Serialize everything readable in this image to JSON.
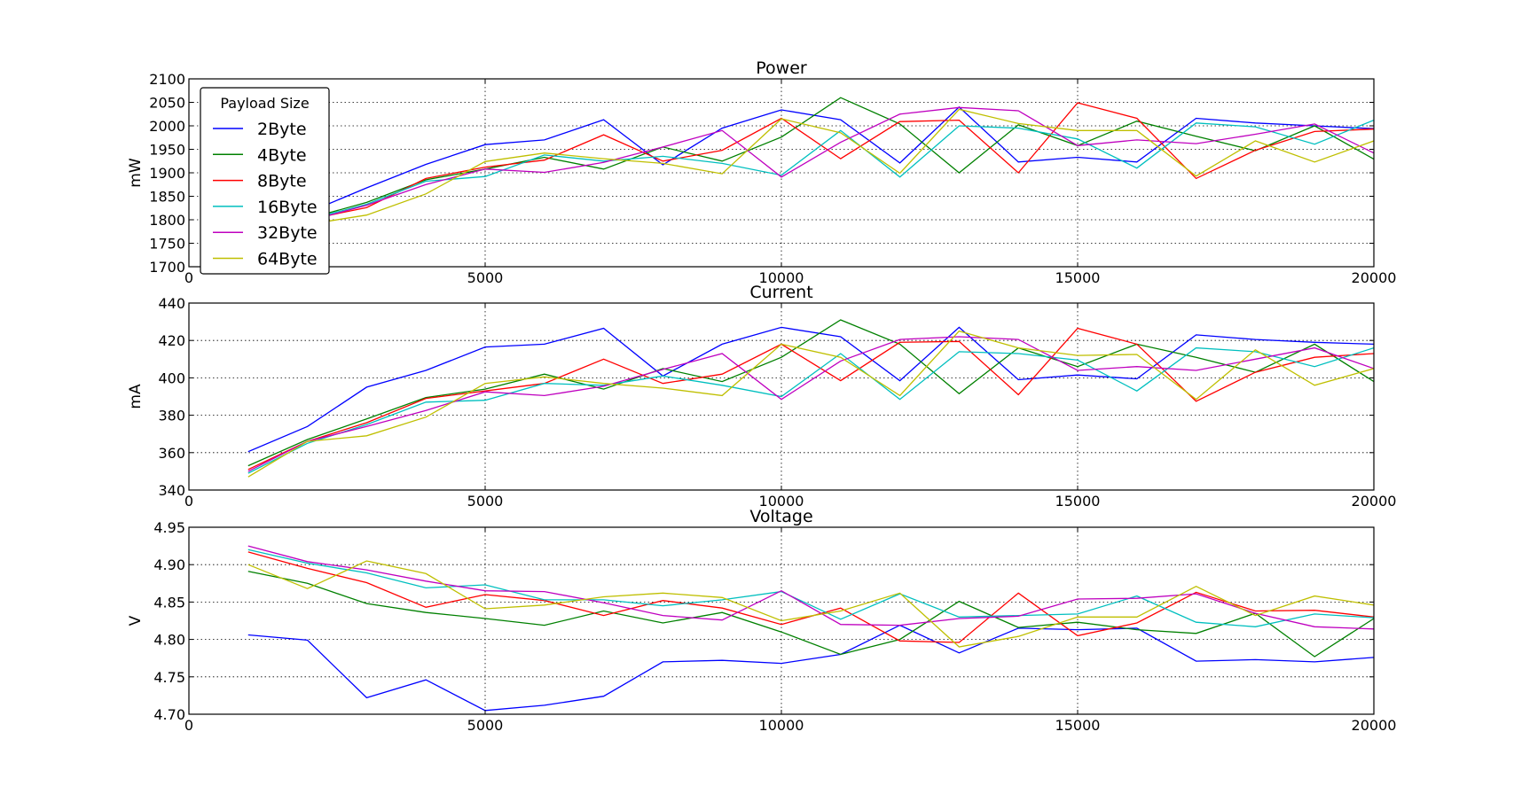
{
  "legend": {
    "title": "Payload Size",
    "entries": [
      "2Byte",
      "4Byte",
      "8Byte",
      "16Byte",
      "32Byte",
      "64Byte"
    ],
    "placement": "top-left of first panel"
  },
  "colors": {
    "2Byte": "#0000ff",
    "4Byte": "#008000",
    "8Byte": "#ff0000",
    "16Byte": "#00bfbf",
    "32Byte": "#bf00bf",
    "64Byte": "#bfbf00"
  },
  "chart_data": [
    {
      "type": "line",
      "title": "Power",
      "xlabel": "",
      "ylabel": "mW",
      "xlim": [
        0,
        20000
      ],
      "ylim": [
        1700,
        2100
      ],
      "grid": true,
      "xticks": [
        "0",
        "5000",
        "10000",
        "15000",
        "20000"
      ],
      "yticks": [
        "1700",
        "1750",
        "1800",
        "1850",
        "1900",
        "1950",
        "2000",
        "2050",
        "2100"
      ],
      "x": [
        1000,
        2000,
        3000,
        4000,
        5000,
        6000,
        7000,
        8000,
        9000,
        10000,
        11000,
        12000,
        13000,
        14000,
        15000,
        16000,
        17000,
        18000,
        19000,
        20000
      ],
      "series": [
        {
          "name": "2Byte",
          "values": [
            1740,
            1815,
            1868,
            1918,
            1960,
            1970,
            2013,
            1917,
            1995,
            2034,
            2013,
            1921,
            2040,
            1923,
            1933,
            1923,
            2016,
            2006,
            2000,
            1994
          ]
        },
        {
          "name": "4Byte",
          "values": [
            1738,
            1802,
            1837,
            1885,
            1908,
            1933,
            1908,
            1955,
            1925,
            1976,
            2060,
            2004,
            1900,
            2002,
            1958,
            2010,
            1978,
            1947,
            2000,
            1929
          ]
        },
        {
          "name": "8Byte",
          "values": [
            1735,
            1800,
            1826,
            1888,
            1912,
            1927,
            1981,
            1925,
            1948,
            2016,
            1930,
            2009,
            2012,
            1900,
            2049,
            2016,
            1888,
            1948,
            1988,
            1993
          ]
        },
        {
          "name": "16Byte",
          "values": [
            1730,
            1800,
            1833,
            1882,
            1892,
            1938,
            1925,
            1935,
            1920,
            1895,
            1990,
            1891,
            2000,
            1995,
            1972,
            1910,
            2006,
            1998,
            1961,
            2012
          ]
        },
        {
          "name": "32Byte",
          "values": [
            1725,
            1797,
            1831,
            1875,
            1908,
            1901,
            1922,
            1955,
            1990,
            1891,
            1965,
            2025,
            2039,
            2032,
            1958,
            1970,
            1962,
            1982,
            2004,
            1942
          ]
        },
        {
          "name": "64Byte",
          "values": [
            1720,
            1790,
            1810,
            1855,
            1924,
            1942,
            1930,
            1920,
            1898,
            2015,
            1985,
            1899,
            2035,
            2005,
            1990,
            1990,
            1893,
            1968,
            1923,
            1968
          ]
        }
      ]
    },
    {
      "type": "line",
      "title": "Current",
      "xlabel": "",
      "ylabel": "mA",
      "xlim": [
        0,
        20000
      ],
      "ylim": [
        340,
        440
      ],
      "grid": true,
      "xticks": [
        "0",
        "5000",
        "10000",
        "15000",
        "20000"
      ],
      "yticks": [
        "340",
        "360",
        "380",
        "400",
        "420",
        "440"
      ],
      "x": [
        1000,
        2000,
        3000,
        4000,
        5000,
        6000,
        7000,
        8000,
        9000,
        10000,
        11000,
        12000,
        13000,
        14000,
        15000,
        16000,
        17000,
        18000,
        19000,
        20000
      ],
      "series": [
        {
          "name": "2Byte",
          "values": [
            360.5,
            374,
            395,
            404,
            416.5,
            418,
            426.5,
            401,
            418,
            427,
            422,
            398.5,
            427,
            399,
            401.5,
            399.5,
            423,
            420.5,
            419,
            418
          ]
        },
        {
          "name": "4Byte",
          "values": [
            353,
            367,
            378,
            389.5,
            394,
            402,
            394,
            405,
            398,
            411,
            431,
            418,
            391.5,
            416,
            406,
            418,
            411,
            403,
            418,
            398
          ]
        },
        {
          "name": "8Byte",
          "values": [
            351,
            366,
            376,
            389,
            393,
            397,
            410,
            397,
            402,
            418,
            398.5,
            419,
            419.5,
            391,
            426.5,
            418,
            387.5,
            403,
            411,
            413
          ]
        },
        {
          "name": "16Byte",
          "values": [
            349,
            365,
            375,
            387,
            388,
            397,
            396,
            401,
            396,
            390,
            413,
            388.5,
            414,
            413,
            409.5,
            393,
            416,
            414,
            406,
            416
          ]
        },
        {
          "name": "32Byte",
          "values": [
            350,
            366,
            374,
            382.5,
            392.5,
            390.5,
            395.5,
            404.5,
            413,
            388.5,
            409,
            420.5,
            422,
            420.5,
            404,
            406,
            404,
            410,
            416,
            405
          ]
        },
        {
          "name": "64Byte",
          "values": [
            347,
            366,
            369,
            379,
            397,
            400.5,
            397,
            394.5,
            390.5,
            418,
            411,
            390.5,
            425,
            416,
            412,
            412.5,
            388.5,
            415,
            396,
            405
          ]
        }
      ]
    },
    {
      "type": "line",
      "title": "Voltage",
      "xlabel": "",
      "ylabel": "V",
      "xlim": [
        0,
        20000
      ],
      "ylim": [
        4.7,
        4.95
      ],
      "grid": true,
      "xticks": [
        "0",
        "5000",
        "10000",
        "15000",
        "20000"
      ],
      "yticks": [
        "4.70",
        "4.75",
        "4.80",
        "4.85",
        "4.90",
        "4.95"
      ],
      "x": [
        1000,
        2000,
        3000,
        4000,
        5000,
        6000,
        7000,
        8000,
        9000,
        10000,
        11000,
        12000,
        13000,
        14000,
        15000,
        16000,
        17000,
        18000,
        19000,
        20000
      ],
      "series": [
        {
          "name": "2Byte",
          "values": [
            4.806,
            4.799,
            4.722,
            4.746,
            4.705,
            4.712,
            4.724,
            4.77,
            4.772,
            4.768,
            4.78,
            4.819,
            4.782,
            4.815,
            4.813,
            4.815,
            4.771,
            4.773,
            4.77,
            4.776
          ]
        },
        {
          "name": "4Byte",
          "values": [
            4.891,
            4.875,
            4.848,
            4.836,
            4.828,
            4.819,
            4.838,
            4.822,
            4.836,
            4.81,
            4.78,
            4.8,
            4.851,
            4.816,
            4.823,
            4.813,
            4.808,
            4.835,
            4.777,
            4.828
          ]
        },
        {
          "name": "8Byte",
          "values": [
            4.917,
            4.895,
            4.876,
            4.843,
            4.86,
            4.852,
            4.832,
            4.852,
            4.842,
            4.82,
            4.842,
            4.798,
            4.796,
            4.862,
            4.805,
            4.822,
            4.863,
            4.838,
            4.839,
            4.83
          ]
        },
        {
          "name": "16Byte",
          "values": [
            4.92,
            4.902,
            4.889,
            4.869,
            4.873,
            4.853,
            4.853,
            4.845,
            4.853,
            4.864,
            4.827,
            4.861,
            4.83,
            4.832,
            4.834,
            4.858,
            4.823,
            4.817,
            4.834,
            4.829
          ]
        },
        {
          "name": "32Byte",
          "values": [
            4.925,
            4.904,
            4.893,
            4.878,
            4.865,
            4.864,
            4.849,
            4.832,
            4.826,
            4.865,
            4.82,
            4.819,
            4.828,
            4.831,
            4.854,
            4.855,
            4.861,
            4.835,
            4.817,
            4.814
          ]
        },
        {
          "name": "64Byte",
          "values": [
            4.9,
            4.868,
            4.905,
            4.888,
            4.841,
            4.846,
            4.857,
            4.862,
            4.856,
            4.825,
            4.838,
            4.862,
            4.79,
            4.804,
            4.83,
            4.83,
            4.871,
            4.832,
            4.858,
            4.846
          ]
        }
      ]
    }
  ]
}
